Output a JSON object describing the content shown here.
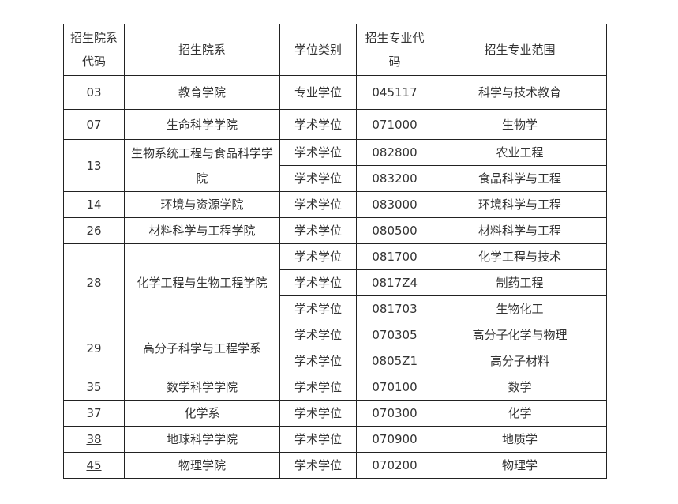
{
  "headers": [
    "招生院系代码",
    "招生院系",
    "学位类别",
    "招生专业代码",
    "招生专业范围"
  ],
  "departments": [
    {
      "code": "03",
      "name": "教育学院",
      "link": false,
      "programs": [
        {
          "degree": "专业学位",
          "major_code": "045117",
          "major": "科学与技术教育"
        }
      ]
    },
    {
      "code": "07",
      "name": "生命科学学院",
      "link": false,
      "programs": [
        {
          "degree": "学术学位",
          "major_code": "071000",
          "major": "生物学"
        }
      ]
    },
    {
      "code": "13",
      "name": "生物系统工程与食品科学学院",
      "link": false,
      "programs": [
        {
          "degree": "学术学位",
          "major_code": "082800",
          "major": "农业工程"
        },
        {
          "degree": "学术学位",
          "major_code": "083200",
          "major": "食品科学与工程"
        }
      ]
    },
    {
      "code": "14",
      "name": "环境与资源学院",
      "link": false,
      "programs": [
        {
          "degree": "学术学位",
          "major_code": "083000",
          "major": "环境科学与工程"
        }
      ]
    },
    {
      "code": "26",
      "name": "材料科学与工程学院",
      "link": false,
      "programs": [
        {
          "degree": "学术学位",
          "major_code": "080500",
          "major": "材料科学与工程"
        }
      ]
    },
    {
      "code": "28",
      "name": "化学工程与生物工程学院",
      "link": false,
      "programs": [
        {
          "degree": "学术学位",
          "major_code": "081700",
          "major": "化学工程与技术"
        },
        {
          "degree": "学术学位",
          "major_code": "0817Z4",
          "major": "制药工程"
        },
        {
          "degree": "学术学位",
          "major_code": "081703",
          "major": "生物化工"
        }
      ]
    },
    {
      "code": "29",
      "name": "高分子科学与工程学系",
      "link": false,
      "programs": [
        {
          "degree": "学术学位",
          "major_code": "070305",
          "major": "高分子化学与物理"
        },
        {
          "degree": "学术学位",
          "major_code": "0805Z1",
          "major": "高分子材料"
        }
      ]
    },
    {
      "code": "35",
      "name": "数学科学学院",
      "link": false,
      "programs": [
        {
          "degree": "学术学位",
          "major_code": "070100",
          "major": "数学"
        }
      ]
    },
    {
      "code": "37",
      "name": "化学系",
      "link": false,
      "programs": [
        {
          "degree": "学术学位",
          "major_code": "070300",
          "major": "化学"
        }
      ]
    },
    {
      "code": "38",
      "name": "地球科学学院",
      "link": true,
      "programs": [
        {
          "degree": "学术学位",
          "major_code": "070900",
          "major": "地质学"
        }
      ]
    },
    {
      "code": "45",
      "name": "物理学院",
      "link": true,
      "programs": [
        {
          "degree": "学术学位",
          "major_code": "070200",
          "major": "物理学"
        }
      ]
    }
  ]
}
